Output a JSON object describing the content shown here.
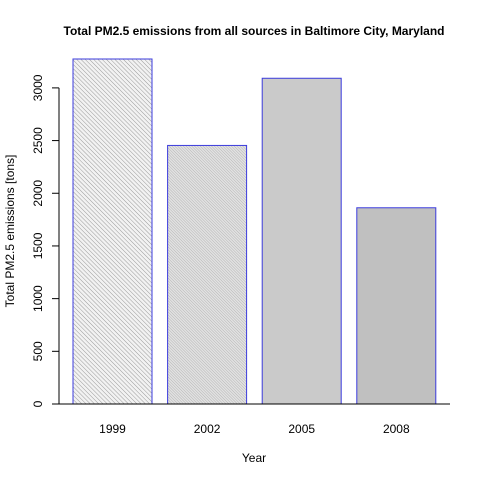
{
  "chart_data": {
    "type": "bar",
    "title": "Total PM2.5 emissions from all sources in Baltimore City, Maryland",
    "xlabel": "Year",
    "ylabel": "Total PM2.5 emissions [tons]",
    "categories": [
      "1999",
      "2002",
      "2005",
      "2008"
    ],
    "values": [
      3274.2,
      2453.9,
      3091.4,
      1862.3
    ],
    "ylim": [
      0,
      3274.2
    ],
    "yticks": [
      0,
      500,
      1000,
      1500,
      2000,
      2500,
      3000
    ],
    "grid": false,
    "legend": "none",
    "bar_border_color": "#3b3bdd",
    "bar_fill_styles": [
      "hatch-dense",
      "hatch-fine",
      "solid-light-gray",
      "solid-gray"
    ]
  }
}
